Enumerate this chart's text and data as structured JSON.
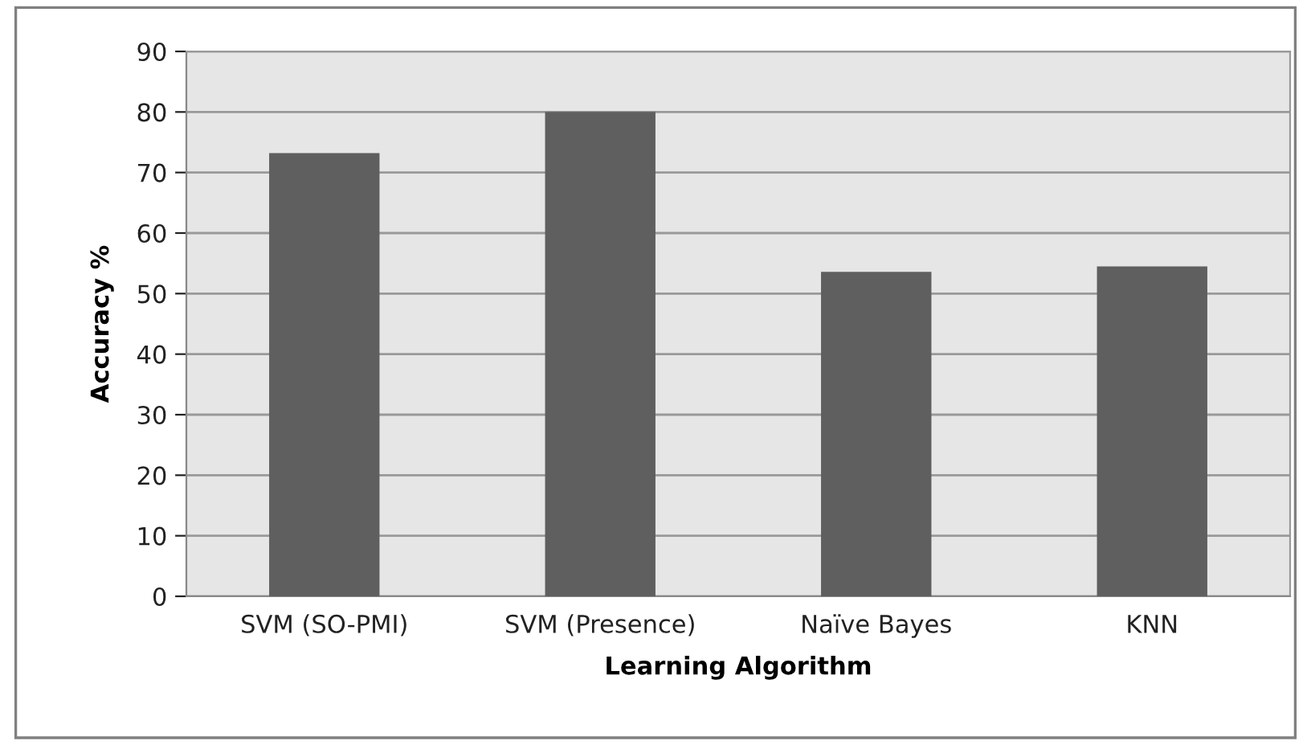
{
  "chart_data": {
    "type": "bar",
    "xlabel": "Learning Algorithm",
    "ylabel": "Accuracy %",
    "categories": [
      "SVM (SO-PMI)",
      "SVM (Presence)",
      "Naïve Bayes",
      "KNN"
    ],
    "values": [
      73.2,
      80,
      53.6,
      54.5
    ],
    "color": "#5f5f5f",
    "ylim": [
      0,
      90
    ],
    "yticks": [
      0,
      10,
      20,
      30,
      40,
      50,
      60,
      70,
      80,
      90
    ],
    "grid": "y"
  }
}
